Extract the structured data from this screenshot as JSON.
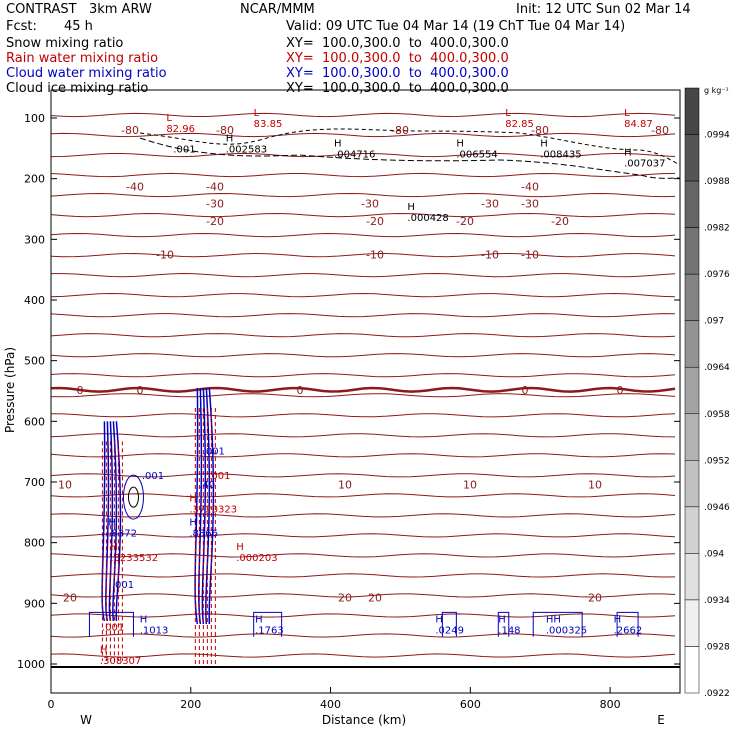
{
  "header": {
    "model": "CONTRAST   3km ARW",
    "center": "NCAR/MMM",
    "init": "Init: 12 UTC Sun 02 Mar 14",
    "fcst_label": "Fcst:",
    "fcst_value": "45 h",
    "valid": "Valid: 09 UTC Tue 04 Mar 14 (19 ChT Tue 04 Mar 14)"
  },
  "fields": [
    {
      "name": "Snow mixing ratio",
      "xy": "XY=  100.0,300.0  to  400.0,300.0",
      "color": "#000000"
    },
    {
      "name": "Rain water mixing ratio",
      "xy": "XY=  100.0,300.0  to  400.0,300.0",
      "color": "#c00000"
    },
    {
      "name": "Cloud water mixing ratio",
      "xy": "XY=  100.0,300.0  to  400.0,300.0",
      "color": "#0000c0"
    },
    {
      "name": "Cloud ice mixing ratio",
      "xy": "XY=  100.0,300.0  to  400.0,300.0",
      "color": "#000000"
    }
  ],
  "chart_data": {
    "type": "contour",
    "xlabel": "Distance (km)",
    "ylabel": "Pressure (hPa)",
    "xlim": [
      0,
      900
    ],
    "ylim": [
      1000,
      60
    ],
    "x_ticks": [
      0,
      200,
      400,
      600,
      800
    ],
    "y_ticks": [
      100,
      200,
      300,
      400,
      500,
      600,
      700,
      800,
      900,
      1000
    ],
    "x_end_labels": [
      "W",
      "E"
    ],
    "temperature_contours": [
      {
        "label": "-80",
        "p": 120
      },
      {
        "label": "-40",
        "p": 213
      },
      {
        "label": "-30",
        "p": 241
      },
      {
        "label": "-20",
        "p": 270
      },
      {
        "label": "-10",
        "p": 325
      },
      {
        "label": "0",
        "p": 548
      },
      {
        "label": "10",
        "p": 704
      },
      {
        "label": "20",
        "p": 890
      }
    ],
    "max_min_labels": [
      {
        "label": "L",
        "value": "82.96",
        "x": 165,
        "p": 118,
        "color": "#c00000"
      },
      {
        "label": "L",
        "value": "83.85",
        "x": 290,
        "p": 110,
        "color": "#c00000"
      },
      {
        "label": "L",
        "value": "82.85",
        "x": 650,
        "p": 110,
        "color": "#c00000"
      },
      {
        "label": "L",
        "value": "84.87",
        "x": 820,
        "p": 110,
        "color": "#c00000"
      },
      {
        "label": "",
        "value": ".001",
        "x": 175,
        "p": 152,
        "color": "#000000"
      },
      {
        "label": "H",
        "value": ".002583",
        "x": 250,
        "p": 152,
        "color": "#000000"
      },
      {
        "label": "H",
        "value": ".004716",
        "x": 405,
        "p": 160,
        "color": "#000000"
      },
      {
        "label": "H",
        "value": ".006554",
        "x": 580,
        "p": 160,
        "color": "#000000"
      },
      {
        "label": "H",
        "value": ".008435",
        "x": 700,
        "p": 160,
        "color": "#000000"
      },
      {
        "label": "H",
        "value": ".007037",
        "x": 820,
        "p": 175,
        "color": "#000000"
      },
      {
        "label": "H",
        "value": ".000428",
        "x": 510,
        "p": 265,
        "color": "#000000"
      },
      {
        "label": "",
        "value": ".001",
        "x": 130,
        "p": 690,
        "color": "#0000c0"
      },
      {
        "label": "H",
        "value": ".8372",
        "x": 82,
        "p": 785,
        "color": "#0000c0"
      },
      {
        "label": "H",
        "value": ".3233532",
        "x": 85,
        "p": 825,
        "color": "#c00000"
      },
      {
        "label": "",
        "value": ".001",
        "x": 87,
        "p": 870,
        "color": "#0000c0"
      },
      {
        "label": "",
        "value": ".001",
        "x": 73,
        "p": 940,
        "color": "#c00000"
      },
      {
        "label": "H",
        "value": ".1013",
        "x": 127,
        "p": 945,
        "color": "#0000c0"
      },
      {
        "label": "H",
        "value": ".308307",
        "x": 70,
        "p": 995,
        "color": "#c00000"
      },
      {
        "label": "",
        "value": ".001",
        "x": 217,
        "p": 650,
        "color": "#0000c0"
      },
      {
        "label": "",
        "value": ".001",
        "x": 225,
        "p": 690,
        "color": "#c00000"
      },
      {
        "label": "",
        "value": ".40",
        "x": 212,
        "p": 705,
        "color": "#0000c0"
      },
      {
        "label": "H",
        "value": ".3720323",
        "x": 198,
        "p": 745,
        "color": "#c00000"
      },
      {
        "label": "H",
        "value": ".8366",
        "x": 198,
        "p": 785,
        "color": "#0000c0"
      },
      {
        "label": "H",
        "value": ".000203",
        "x": 265,
        "p": 825,
        "color": "#c00000"
      },
      {
        "label": "H",
        "value": ".1763",
        "x": 292,
        "p": 945,
        "color": "#0000c0"
      },
      {
        "label": "H",
        "value": ".0249",
        "x": 550,
        "p": 945,
        "color": "#0000c0"
      },
      {
        "label": "H",
        "value": ".148",
        "x": 640,
        "p": 945,
        "color": "#0000c0"
      },
      {
        "label": "HH",
        "value": ".000325",
        "x": 708,
        "p": 945,
        "color": "#0000c0"
      },
      {
        "label": "H",
        "value": ".2662",
        "x": 805,
        "p": 945,
        "color": "#0000c0"
      }
    ],
    "colorbar": {
      "unit": "g kg⁻¹",
      "ticks": [
        ".0994",
        ".0988",
        ".0982",
        ".0976",
        ".097",
        ".0964",
        ".0958",
        ".0952",
        ".0946",
        ".094",
        ".0934",
        ".0928",
        ".0922"
      ]
    }
  }
}
